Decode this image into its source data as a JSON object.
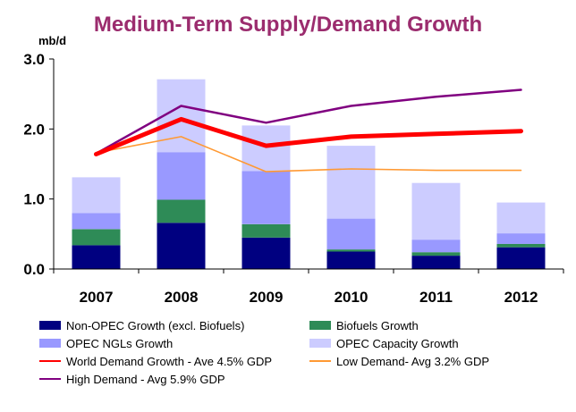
{
  "chart_data": {
    "type": "bar",
    "title": "Medium-Term Supply/Demand Growth",
    "ylabel": "mb/d",
    "ylim": [
      0,
      3.0
    ],
    "yticks": [
      "0.0",
      "1.0",
      "2.0",
      "3.0"
    ],
    "categories": [
      "2007",
      "2008",
      "2009",
      "2010",
      "2011",
      "2012"
    ],
    "stacked_series": [
      {
        "name": "Non-OPEC Growth (excl. Biofuels)",
        "color": "#000080",
        "values": [
          0.34,
          0.66,
          0.45,
          0.25,
          0.19,
          0.31
        ]
      },
      {
        "name": "Biofuels Growth",
        "color": "#2e8b57",
        "values": [
          0.23,
          0.33,
          0.19,
          0.03,
          0.05,
          0.05
        ]
      },
      {
        "name": "OPEC NGLs Growth",
        "color": "#9999ff",
        "values": [
          0.23,
          0.68,
          0.76,
          0.44,
          0.18,
          0.15
        ]
      },
      {
        "name": "OPEC Capacity Growth",
        "color": "#ccccff",
        "values": [
          0.51,
          1.04,
          0.65,
          1.04,
          0.81,
          0.44
        ]
      }
    ],
    "line_series": [
      {
        "name": "World Demand Growth - Ave 4.5% GDP",
        "color": "#ff0000",
        "values": [
          1.64,
          2.14,
          1.76,
          1.89,
          1.93,
          1.97
        ]
      },
      {
        "name": "Low Demand- Avg 3.2% GDP",
        "color": "#ff9933",
        "values": [
          1.66,
          1.89,
          1.39,
          1.43,
          1.41,
          1.41
        ]
      },
      {
        "name": "High Demand - Avg 5.9% GDP",
        "color": "#800080",
        "values": [
          1.65,
          2.33,
          2.09,
          2.33,
          2.46,
          2.56
        ]
      }
    ],
    "legend_position": "bottom",
    "grid": false
  }
}
